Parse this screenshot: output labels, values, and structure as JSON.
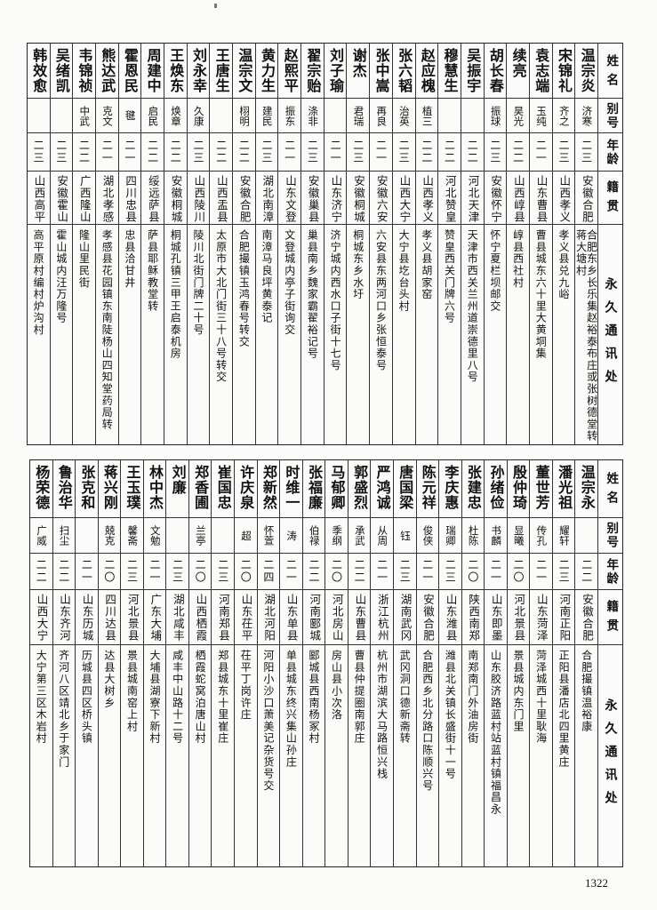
{
  "headers": {
    "name": "姓名",
    "alias": "别号",
    "age": "年龄",
    "native": "籍贯",
    "address": "永久通讯处"
  },
  "page_number": "1322",
  "table1": [
    {
      "name": "温宗炎",
      "alias": "济寒",
      "age": "二三",
      "native": "安徽合肥",
      "address": "合肥东乡长乐集赵裕泰布庄或张树德堂转\n蒋大塘村"
    },
    {
      "name": "宋锦礼",
      "alias": "齐之",
      "age": "二三",
      "native": "山西孝义",
      "address": "孝义县兑九峪"
    },
    {
      "name": "袁志端",
      "alias": "玉纯",
      "age": "二一",
      "native": "山东曹县",
      "address": "曹县城东六十里大黄垌集"
    },
    {
      "name": "续亮",
      "alias": "昊光",
      "age": "二二",
      "native": "山西崞县",
      "address": "崞县西社村"
    },
    {
      "name": "胡长春",
      "alias": "振球",
      "age": "二三",
      "native": "安徽怀宁",
      "address": "怀宁夏栏坝邮交"
    },
    {
      "name": "吴振宇",
      "alias": "",
      "age": "二二",
      "native": "河北天津",
      "address": "天津市西关兰州道崇德里八号"
    },
    {
      "name": "穆慧生",
      "alias": "",
      "age": "二二",
      "native": "河北赞皇",
      "address": "赞皇西关门牌六号"
    },
    {
      "name": "赵应槐",
      "alias": "植三",
      "age": "二二",
      "native": "山西孝义",
      "address": "孝义县胡家窑"
    },
    {
      "name": "张六韬",
      "alias": "治英",
      "age": "二三",
      "native": "山西大宁",
      "address": "大宁县圪台头村"
    },
    {
      "name": "张中嵩",
      "alias": "再良",
      "age": "二一",
      "native": "安徽六安",
      "address": "六安县东两河口乡张恒泰号"
    },
    {
      "name": "谢杰",
      "alias": "君瑞",
      "age": "二三",
      "native": "安徽桐城",
      "address": "桐城东乡水圩"
    },
    {
      "name": "刘子瑜",
      "alias": "",
      "age": "二一",
      "native": "山东济宁",
      "address": "济宁城内西水口子街十七号"
    },
    {
      "name": "翟宗贻",
      "alias": "涤非",
      "age": "二三",
      "native": "安徽巢县",
      "address": "巢县南乡魏家霸翟裕记号"
    },
    {
      "name": "赵熙平",
      "alias": "振东",
      "age": "二一",
      "native": "山东文登",
      "address": "文登城内亭子街询交"
    },
    {
      "name": "黄力生",
      "alias": "建民",
      "age": "二三",
      "native": "湖北南漳",
      "address": "南漳马良坪黄泰记"
    },
    {
      "name": "温宗文",
      "alias": "栩明",
      "age": "二二",
      "native": "安徽合肥",
      "address": "合肥撮镇玉鸿春号转交"
    },
    {
      "name": "王唐生",
      "alias": "",
      "age": "二二",
      "native": "山西盂县",
      "address": "太原市大北门街三十八号转交"
    },
    {
      "name": "刘永幸",
      "alias": "久康",
      "age": "二三",
      "native": "山西陵川",
      "address": "陵川北街门牌二十号"
    },
    {
      "name": "王焕东",
      "alias": "焕章",
      "age": "二二",
      "native": "安徽桐城",
      "address": "桐城孔镇三甲王启泰机房"
    },
    {
      "name": "周建中",
      "alias": "启民",
      "age": "二二",
      "native": "绥远萨县",
      "address": "萨县耶稣教堂转"
    },
    {
      "name": "霍恩民",
      "alias": "毽",
      "age": "二一",
      "native": "四川忠县",
      "address": "忠县洽甘井"
    },
    {
      "name": "熊达武",
      "alias": "克文",
      "age": "二一",
      "native": "湖北孝感",
      "address": "孝感县花园镇东南陡杨山四知堂药局转"
    },
    {
      "name": "韦锦祯",
      "alias": "中武",
      "age": "二二",
      "native": "广西隆山",
      "address": "隆山里民街"
    },
    {
      "name": "吴绪凯",
      "alias": "",
      "age": "二三",
      "native": "安徽霍山",
      "address": "霍山城内汪万隆号"
    },
    {
      "name": "韩效愈",
      "alias": "",
      "age": "二三",
      "native": "山西高平",
      "address": "高平原村编村炉沟村"
    }
  ],
  "table2": [
    {
      "name": "温宗永",
      "alias": "",
      "age": "二二",
      "native": "安徽合肥",
      "address": "合肥撮镇温裕康"
    },
    {
      "name": "潘光祖",
      "alias": "耀轩",
      "age": "二三",
      "native": "河南正阳",
      "address": "正阳县潘店北四里黄庄"
    },
    {
      "name": "董世芳",
      "alias": "传孔",
      "age": "二一",
      "native": "山东菏泽",
      "address": "菏泽城西十里耿海"
    },
    {
      "name": "殷仲琦",
      "alias": "显曦",
      "age": "二〇",
      "native": "河北景县",
      "address": "景县城内东门里"
    },
    {
      "name": "孙绪俭",
      "alias": "书麟",
      "age": "二一",
      "native": "山东即墨",
      "address": "山东胶济路蓝村站蓝村镇福昌永"
    },
    {
      "name": "张建忠",
      "alias": "杜陈",
      "age": "二〇",
      "native": "陕西南郑",
      "address": "南郑南门外油房街"
    },
    {
      "name": "李庆惠",
      "alias": "瑞卿",
      "age": "二三",
      "native": "山东潍县",
      "address": "潍县北关镇长盛街十一号"
    },
    {
      "name": "陈元祥",
      "alias": "俊侠",
      "age": "二一",
      "native": "安徽合肥",
      "address": "合肥西乡北分路口陈顺兴号"
    },
    {
      "name": "唐国梁",
      "alias": "钰",
      "age": "二三",
      "native": "湖南武冈",
      "address": "武冈洞口德新斋转"
    },
    {
      "name": "严鸿诚",
      "alias": "从周",
      "age": "二一",
      "native": "浙江杭州",
      "address": "杭州市湖滨大马路恒兴栈"
    },
    {
      "name": "郭盛烈",
      "alias": "承武",
      "age": "二二",
      "native": "山东曹县",
      "address": "曹县仲提圈南郭庄"
    },
    {
      "name": "马郁卿",
      "alias": "季纲",
      "age": "二〇",
      "native": "河北房山",
      "address": "房山县小次洛"
    },
    {
      "name": "张福廉",
      "alias": "伯禄",
      "age": "二二",
      "native": "河南郾城",
      "address": "郾城县西南杨冢村"
    },
    {
      "name": "时维一",
      "alias": "涛",
      "age": "二一",
      "native": "山东单县",
      "address": "单县城东终兴集山孙庄"
    },
    {
      "name": "郑新然",
      "alias": "怀萱",
      "age": "二四",
      "native": "湖北河阳",
      "address": "河阳小沙口萧美记杂货号交"
    },
    {
      "name": "许庆泉",
      "alias": "超",
      "age": "二〇",
      "native": "山东茌平",
      "address": "茌平丁岗许庄"
    },
    {
      "name": "崔国忠",
      "alias": "",
      "age": "二三",
      "native": "河南郑县",
      "address": "郑县城东十里崔庄"
    },
    {
      "name": "郑香圃",
      "alias": "兰亭",
      "age": "二〇",
      "native": "山西栖霞",
      "address": "栖霞蛇窝泊唐山村"
    },
    {
      "name": "刘廉",
      "alias": "",
      "age": "二三",
      "native": "湖北咸丰",
      "address": "咸丰中山路十二号"
    },
    {
      "name": "林中杰",
      "alias": "文勉",
      "age": "二一",
      "native": "广东大埔",
      "address": "大埔县湖寮下新村"
    },
    {
      "name": "王玉璞",
      "alias": "馨斋",
      "age": "二三",
      "native": "河北景县",
      "address": "景县城南窑上村"
    },
    {
      "name": "蒋兴刚",
      "alias": "兢克",
      "age": "二〇",
      "native": "四川达县",
      "address": "达县大树乡"
    },
    {
      "name": "张克和",
      "alias": "",
      "age": "二一",
      "native": "山东历城",
      "address": "历城县四区桥头镇"
    },
    {
      "name": "鲁治华",
      "alias": "扫尘",
      "age": "二二",
      "native": "山东齐河",
      "address": "齐河八区靖北乡于家门"
    },
    {
      "name": "杨荣德",
      "alias": "广威",
      "age": "二二",
      "native": "山西大宁",
      "address": "大宁第三区木岩村"
    }
  ]
}
